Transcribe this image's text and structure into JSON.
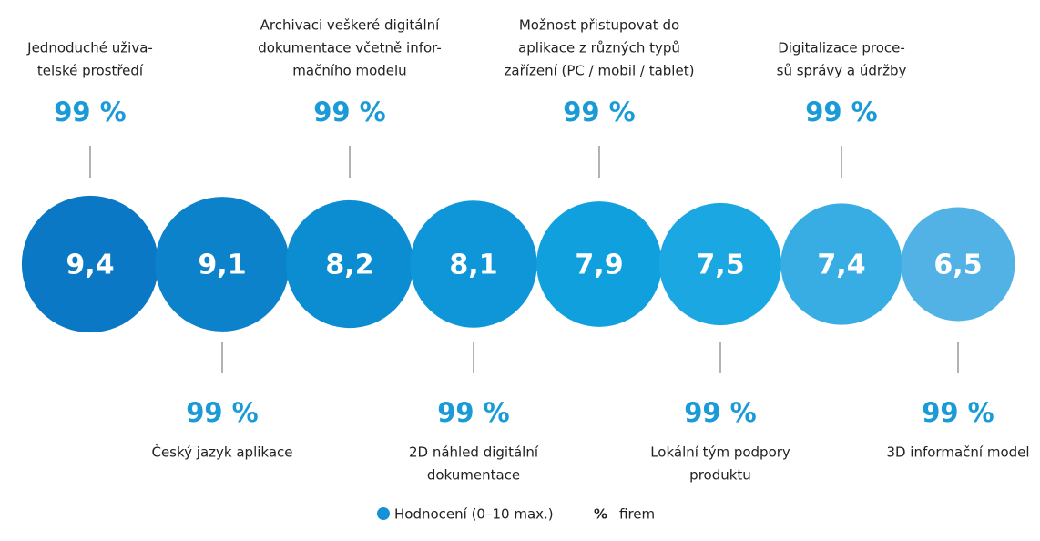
{
  "chart_data": {
    "type": "circles",
    "categories": [
      [
        "Jednoduché uživa-",
        "telské prostředí"
      ],
      [
        "Český jazyk aplikace"
      ],
      [
        "Archivaci veškeré digitální",
        "dokumentace včetně infor-",
        "mačního modelu"
      ],
      [
        "2D náhled digitální",
        "dokumentace"
      ],
      [
        "Možnost přistupovat do",
        "aplikace z různých typů",
        "zařízení (PC / mobil / tablet)"
      ],
      [
        "Lokální tým podpory",
        "produktu"
      ],
      [
        "Digitalizace proce-",
        "sů správy a údržby"
      ],
      [
        "3D informační model"
      ]
    ],
    "colors": [
      "#0a78c4",
      "#0b82ca",
      "#0c8dd2",
      "#0e96d8",
      "#10a0de",
      "#1ba7e2",
      "#37ade4",
      "#52b2e5"
    ],
    "series": [
      {
        "name": "Hodnocení (0–10 max.)",
        "color": "#1592d6",
        "values": [
          9.4,
          9.1,
          8.2,
          8.1,
          7.9,
          7.5,
          7.4,
          6.5
        ],
        "value_labels": [
          "9,4",
          "9,1",
          "8,2",
          "8,1",
          "7,9",
          "7,5",
          "7,4",
          "6,5"
        ]
      },
      {
        "name": "firem",
        "symbol": "%",
        "color": "#1a9ad6",
        "values": [
          99,
          99,
          99,
          99,
          99,
          99,
          99,
          99
        ],
        "value_labels": [
          "99 %",
          "99 %",
          "99 %",
          "99 %",
          "99 %",
          "99 %",
          "99 %",
          "99 %"
        ]
      }
    ]
  }
}
